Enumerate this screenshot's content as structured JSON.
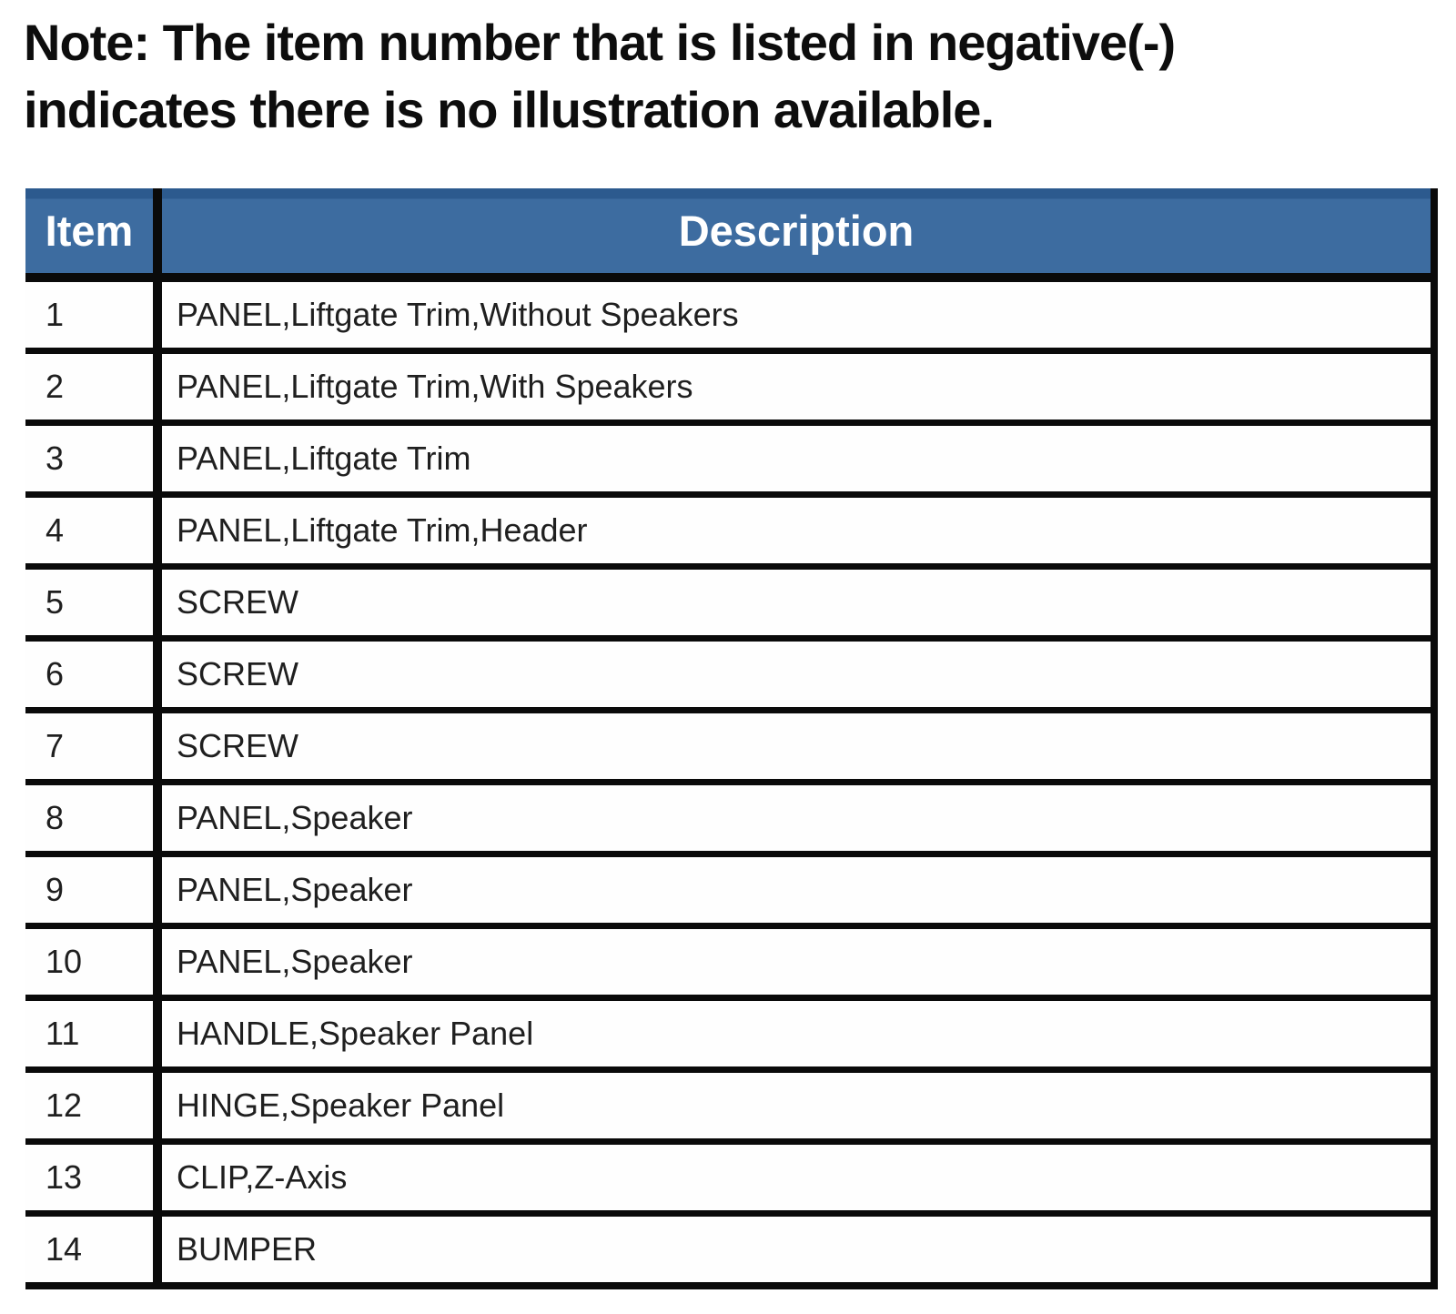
{
  "note": {
    "line1": "Note: The item number that is listed in negative(-)",
    "line2": "indicates there is no illustration available."
  },
  "table": {
    "headers": {
      "item": "Item",
      "description": "Description"
    },
    "rows": [
      {
        "item": "1",
        "description": "PANEL,Liftgate Trim,Without Speakers"
      },
      {
        "item": "2",
        "description": "PANEL,Liftgate Trim,With Speakers"
      },
      {
        "item": "3",
        "description": "PANEL,Liftgate Trim"
      },
      {
        "item": "4",
        "description": "PANEL,Liftgate Trim,Header"
      },
      {
        "item": "5",
        "description": "SCREW"
      },
      {
        "item": "6",
        "description": "SCREW"
      },
      {
        "item": "7",
        "description": "SCREW"
      },
      {
        "item": "8",
        "description": "PANEL,Speaker"
      },
      {
        "item": "9",
        "description": "PANEL,Speaker"
      },
      {
        "item": "10",
        "description": "PANEL,Speaker"
      },
      {
        "item": "11",
        "description": "HANDLE,Speaker Panel"
      },
      {
        "item": "12",
        "description": "HINGE,Speaker Panel"
      },
      {
        "item": "13",
        "description": "CLIP,Z-Axis"
      },
      {
        "item": "14",
        "description": "BUMPER"
      }
    ]
  },
  "colors": {
    "header_blue": "#3d6ca0",
    "header_blue_dark": "#2c5a8e",
    "border_black": "#0a0a0a"
  }
}
